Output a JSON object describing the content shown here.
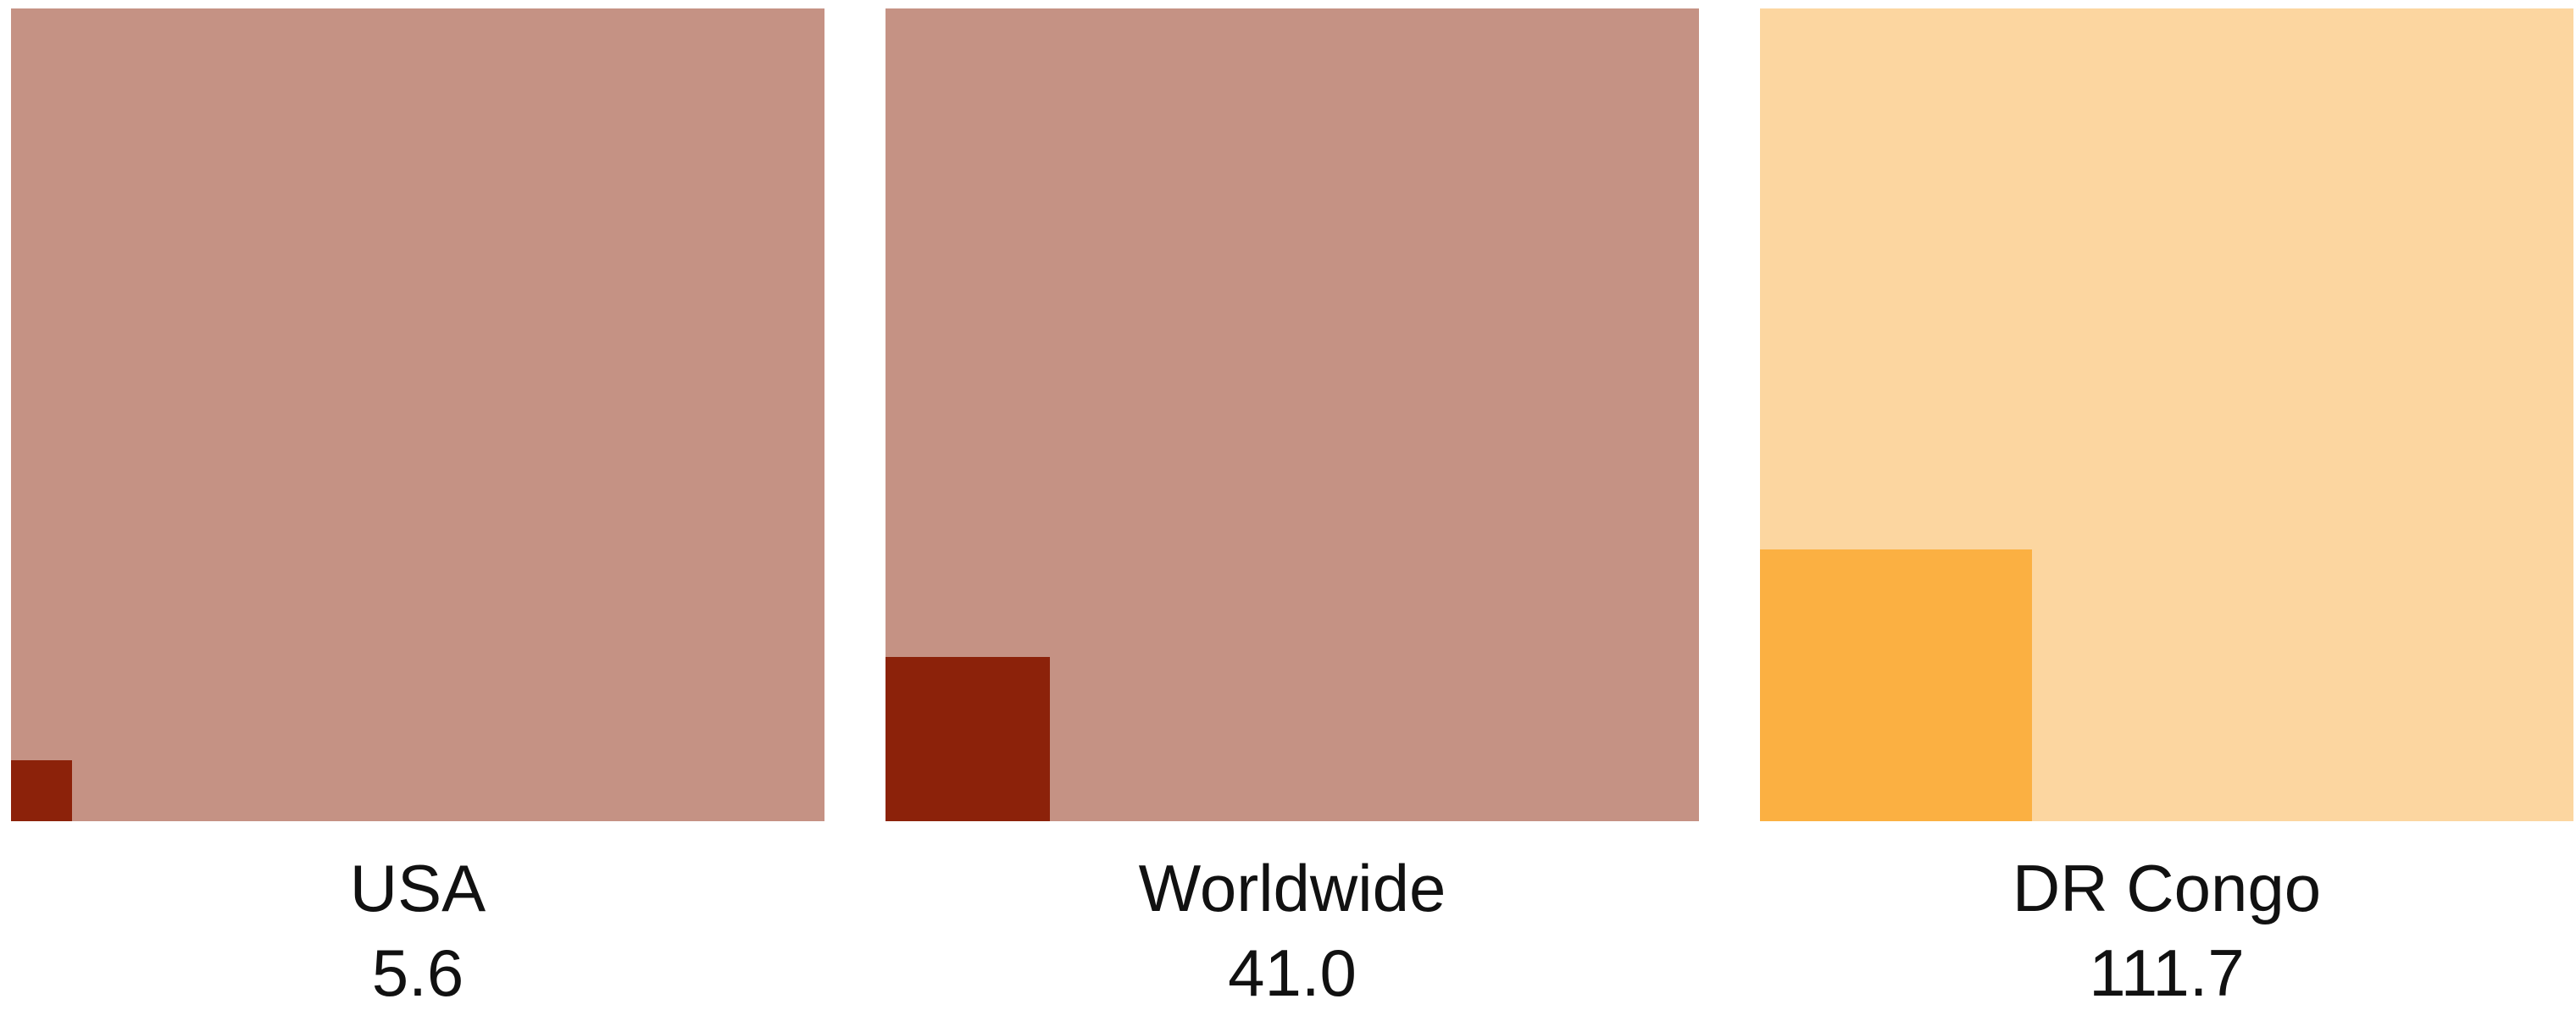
{
  "chart_data": {
    "type": "area-square",
    "max_value": 1000,
    "series": [
      {
        "name": "USA",
        "value": 5.6,
        "value_label": "5.6",
        "colors": {
          "background": "#C59284",
          "fill": "#8C220A"
        }
      },
      {
        "name": "Worldwide",
        "value": 41.0,
        "value_label": "41.0",
        "colors": {
          "background": "#C59284",
          "fill": "#8C220A"
        }
      },
      {
        "name": "DR Congo",
        "value": 111.7,
        "value_label": "111.7",
        "colors": {
          "background": "#FCD6A0",
          "fill": "#FBB042"
        }
      }
    ]
  }
}
